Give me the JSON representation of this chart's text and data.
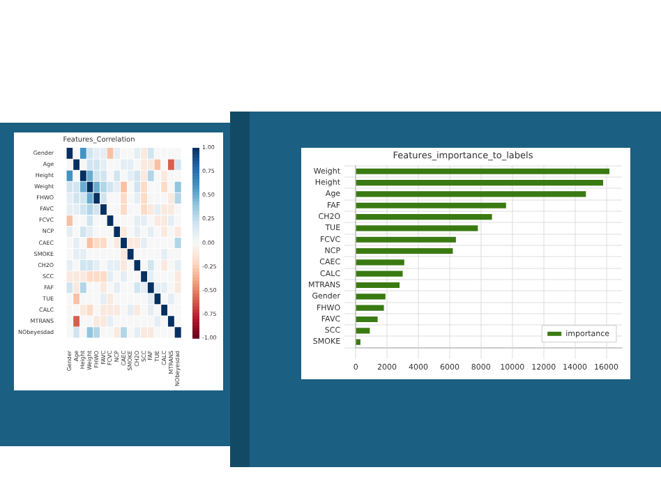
{
  "chart_data": [
    {
      "type": "heatmap",
      "title": "Features_Correlation",
      "categories": [
        "Gender",
        "Age",
        "Height",
        "Weight",
        "FHWO",
        "FAVC",
        "FCVC",
        "NCP",
        "CAEC",
        "SMOKE",
        "CH2O",
        "SCC",
        "FAF",
        "TUE",
        "CALC",
        "MTRANS",
        "NObeyesdad"
      ],
      "y_categories": [
        "Gender",
        "Age",
        "Height",
        "Weight",
        "FHWO",
        "FAVC",
        "FCVC",
        "NCP",
        "CAEC",
        "SMOKE",
        "CH2O",
        "SCC",
        "FAF",
        "TUE",
        "CALC",
        "MTRANS",
        "NObeyesdad"
      ],
      "cells": [
        [
          1,
          0,
          0.6,
          0.2,
          0.1,
          0.1,
          -0.3,
          0.1,
          0,
          0,
          0.1,
          -0.1,
          0.2,
          0,
          0,
          0,
          0
        ],
        [
          0,
          1,
          0,
          0.2,
          0.2,
          0.1,
          0,
          0,
          0.1,
          0.1,
          0,
          -0.1,
          -0.1,
          -0.3,
          0,
          -0.6,
          0.2
        ],
        [
          0.6,
          0,
          1,
          0.5,
          0.2,
          0.2,
          0,
          0.2,
          0,
          0.1,
          0.2,
          -0.1,
          0.3,
          0,
          -0.1,
          0,
          0
        ],
        [
          0.2,
          0.2,
          0.5,
          1,
          0.5,
          0.3,
          0.2,
          0.1,
          -0.3,
          0,
          0.2,
          -0.2,
          0,
          0,
          -0.2,
          0,
          0.4
        ],
        [
          0.1,
          0.2,
          0.2,
          0.5,
          1,
          0.2,
          0,
          0,
          -0.2,
          0,
          0.1,
          -0.2,
          0,
          0,
          0,
          -0.1,
          0.3
        ],
        [
          0.1,
          0.1,
          0.2,
          0.3,
          0.2,
          1,
          0,
          0,
          -0.2,
          0,
          0,
          -0.2,
          -0.1,
          0.1,
          -0.1,
          -0.1,
          0
        ],
        [
          -0.3,
          0,
          0,
          0.2,
          0,
          0,
          1,
          0,
          0,
          0,
          0.1,
          0.1,
          0,
          -0.1,
          -0.1,
          0.1,
          0
        ],
        [
          0.1,
          0,
          0.2,
          0.1,
          0,
          0,
          0,
          1,
          -0.1,
          0,
          0.1,
          0,
          0.1,
          0,
          -0.1,
          0,
          -0.1
        ],
        [
          0,
          0.1,
          0,
          -0.3,
          -0.2,
          -0.2,
          0,
          -0.1,
          1,
          -0.1,
          -0.1,
          0.1,
          0,
          0,
          0,
          0,
          0.3
        ],
        [
          0,
          0.1,
          0.1,
          0,
          0,
          0,
          0,
          0,
          -0.1,
          1,
          0,
          0,
          0,
          0,
          0.1,
          0,
          0
        ],
        [
          0.1,
          0,
          0.2,
          0.2,
          0.1,
          0,
          0.1,
          0.1,
          -0.1,
          0,
          1,
          0,
          0.2,
          0,
          -0.1,
          0,
          0.1
        ],
        [
          -0.1,
          -0.1,
          -0.1,
          -0.2,
          -0.2,
          -0.2,
          0.1,
          0,
          0.1,
          0,
          0,
          1,
          0.1,
          0,
          0,
          0,
          -0.1
        ],
        [
          0.2,
          -0.1,
          0.3,
          0,
          0,
          -0.1,
          0,
          0.1,
          0,
          0,
          0.2,
          0.1,
          1,
          0.1,
          0.1,
          0,
          -0.1
        ],
        [
          0,
          -0.3,
          0,
          0,
          0,
          0.1,
          -0.1,
          0,
          0,
          0,
          0,
          0,
          0.1,
          1,
          0,
          0.1,
          0
        ],
        [
          0,
          0,
          -0.1,
          -0.2,
          0,
          -0.1,
          -0.1,
          -0.1,
          0,
          0.1,
          -0.1,
          0,
          0.1,
          0,
          1,
          0,
          0
        ],
        [
          0,
          -0.6,
          0,
          0,
          -0.1,
          -0.1,
          0.1,
          0,
          0,
          0,
          0,
          0,
          0,
          0.1,
          0,
          1,
          0
        ],
        [
          0,
          0.2,
          0,
          0.4,
          0.3,
          0,
          0,
          -0.1,
          0.3,
          0,
          0.1,
          -0.1,
          -0.1,
          0,
          0,
          0,
          1
        ]
      ],
      "clim": [
        -1,
        1
      ],
      "cticks": [
        {
          "value": 1,
          "label": "1.00"
        },
        {
          "value": 0.75,
          "label": "0.75"
        },
        {
          "value": 0.5,
          "label": "0.50"
        },
        {
          "value": 0.25,
          "label": "0.25"
        },
        {
          "value": 0,
          "label": "0.00"
        },
        {
          "value": -0.25,
          "label": "-0.25"
        },
        {
          "value": -0.5,
          "label": "-0.50"
        },
        {
          "value": -0.75,
          "label": "-0.75"
        },
        {
          "value": -1,
          "label": "-1.00"
        }
      ]
    },
    {
      "type": "bar",
      "orientation": "horizontal",
      "title": "Features_importance_to_labels",
      "categories": [
        "Weight",
        "Height",
        "Age",
        "FAF",
        "CH2O",
        "TUE",
        "FCVC",
        "NCP",
        "CAEC",
        "CALC",
        "MTRANS",
        "Gender",
        "FHWO",
        "FAVC",
        "SCC",
        "SMOKE"
      ],
      "series": [
        {
          "name": "importance",
          "color": "#3a7a12",
          "values": [
            16200,
            15800,
            14700,
            9600,
            8700,
            7800,
            6400,
            6200,
            3100,
            3000,
            2800,
            1900,
            1800,
            1400,
            900,
            300
          ]
        }
      ],
      "xlim": [
        0,
        17000
      ],
      "xticks": [
        0,
        2000,
        4000,
        6000,
        8000,
        10000,
        12000,
        14000,
        16000
      ],
      "grid": true,
      "legend": "bottom right"
    }
  ]
}
